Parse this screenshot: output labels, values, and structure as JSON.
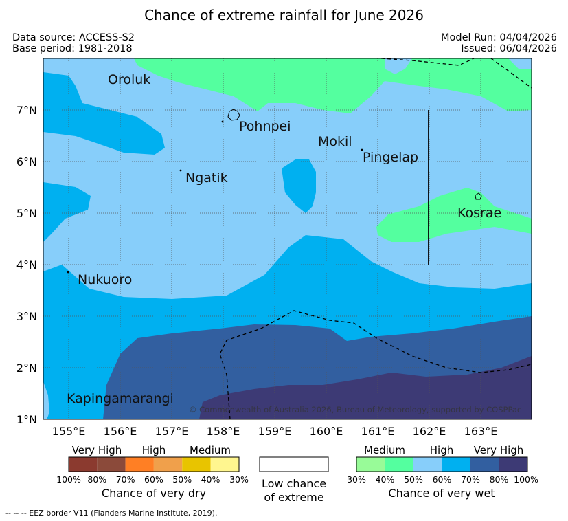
{
  "title": "Chance of extreme rainfall for June 2026",
  "meta": {
    "data_source": "Data source: ACCESS-S2",
    "base_period": "Base period: 1981-2018",
    "model_run": "Model Run: 04/04/2026",
    "issued": "Issued: 06/04/2026"
  },
  "map": {
    "latitude_labels": [
      "7°N",
      "6°N",
      "5°N",
      "4°N",
      "3°N",
      "2°N",
      "1°N"
    ],
    "longitude_labels": [
      "155°E",
      "156°E",
      "157°E",
      "158°E",
      "159°E",
      "160°E",
      "161°E",
      "162°E",
      "163°E"
    ],
    "places": {
      "oroluk": "Oroluk",
      "pohnpei": "Pohnpei",
      "mokil": "Mokil",
      "pingelap": "Pingelap",
      "ngatik": "Ngatik",
      "kosrae": "Kosrae",
      "nukuoro": "Nukuoro",
      "kapingamarangi": "Kapingamarangi"
    },
    "copyright": "© Commonwealth of Australia 2026, Bureau of Meteorology, supported by COSPPac"
  },
  "legend": {
    "dry": {
      "headers": [
        "Very High",
        "High",
        "Medium"
      ],
      "colors": [
        "#8b3a2f",
        "#8b4a3a",
        "#ff7f24",
        "#f0a04b",
        "#e8c400",
        "#fff68f"
      ],
      "ticks": [
        "100%",
        "80%",
        "70%",
        "60%",
        "50%",
        "40%",
        "30%"
      ],
      "caption": "Chance of very dry"
    },
    "low": {
      "caption_line1": "Low chance",
      "caption_line2": "of extreme"
    },
    "wet": {
      "headers": [
        "Medium",
        "High",
        "Very High"
      ],
      "colors": [
        "#98fb98",
        "#54ff9f",
        "#87cefa",
        "#00b0f0",
        "#325fa0",
        "#3d3a75"
      ],
      "ticks": [
        "30%",
        "40%",
        "50%",
        "60%",
        "70%",
        "80%",
        "100%"
      ],
      "caption": "Chance of very wet"
    }
  },
  "footnote": "--  --  -- EEZ border V11 (Flanders Marine Institute, 2019)."
}
